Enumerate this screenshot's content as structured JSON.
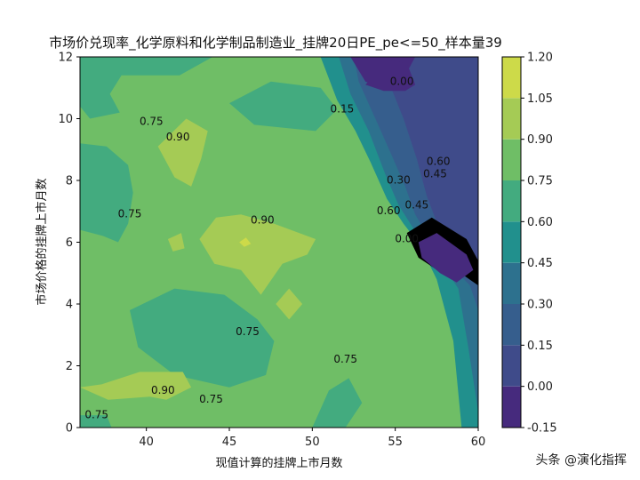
{
  "chart_data": {
    "type": "contourf",
    "title": "市场价兑现率_化学原料和化学制品制造业_挂牌20日PE_pe<=50_样本量39",
    "xlabel": "现值计算的挂牌上市月数",
    "ylabel": "市场价格的挂牌上市月数",
    "xlim": [
      36,
      60
    ],
    "ylim": [
      0,
      12
    ],
    "x_ticks": [
      "40",
      "45",
      "50",
      "55",
      "60"
    ],
    "y_ticks": [
      "0",
      "2",
      "4",
      "6",
      "8",
      "10",
      "12"
    ],
    "levels": [
      -0.15,
      0.0,
      0.15,
      0.3,
      0.45,
      0.6,
      0.75,
      0.9,
      1.05,
      1.2
    ],
    "colorbar_ticks": [
      "-0.15",
      "0.00",
      "0.15",
      "0.30",
      "0.45",
      "0.60",
      "0.75",
      "0.90",
      "1.05",
      "1.20"
    ],
    "colors": [
      "#462a7d",
      "#3f4b8a",
      "#365e8d",
      "#2d718e",
      "#21908d",
      "#43ab7f",
      "#6fbe66",
      "#a5cb55",
      "#cdda49"
    ],
    "contour_labels": [
      {
        "text": "0.00",
        "x": 55.4,
        "y": 11.1
      },
      {
        "text": "0.15",
        "x": 51.8,
        "y": 10.2
      },
      {
        "text": "0.75",
        "x": 40.3,
        "y": 9.8
      },
      {
        "text": "0.90",
        "x": 41.9,
        "y": 9.3
      },
      {
        "text": "0.60",
        "x": 57.6,
        "y": 8.5
      },
      {
        "text": "0.45",
        "x": 57.4,
        "y": 8.1
      },
      {
        "text": "0.30",
        "x": 55.2,
        "y": 7.9
      },
      {
        "text": "0.45",
        "x": 56.3,
        "y": 7.1
      },
      {
        "text": "0.60",
        "x": 54.6,
        "y": 6.9
      },
      {
        "text": "0.75",
        "x": 39.0,
        "y": 6.8
      },
      {
        "text": "0.90",
        "x": 47.0,
        "y": 6.6
      },
      {
        "text": "0.00",
        "x": 55.7,
        "y": 6.0
      },
      {
        "text": "0.75",
        "x": 46.1,
        "y": 3.0
      },
      {
        "text": "0.75",
        "x": 52.0,
        "y": 2.1
      },
      {
        "text": "0.90",
        "x": 41.0,
        "y": 1.1
      },
      {
        "text": "0.75",
        "x": 43.9,
        "y": 0.8
      },
      {
        "text": "0.75",
        "x": 37.0,
        "y": 0.3
      }
    ]
  },
  "watermark": "头条 @演化指挥"
}
